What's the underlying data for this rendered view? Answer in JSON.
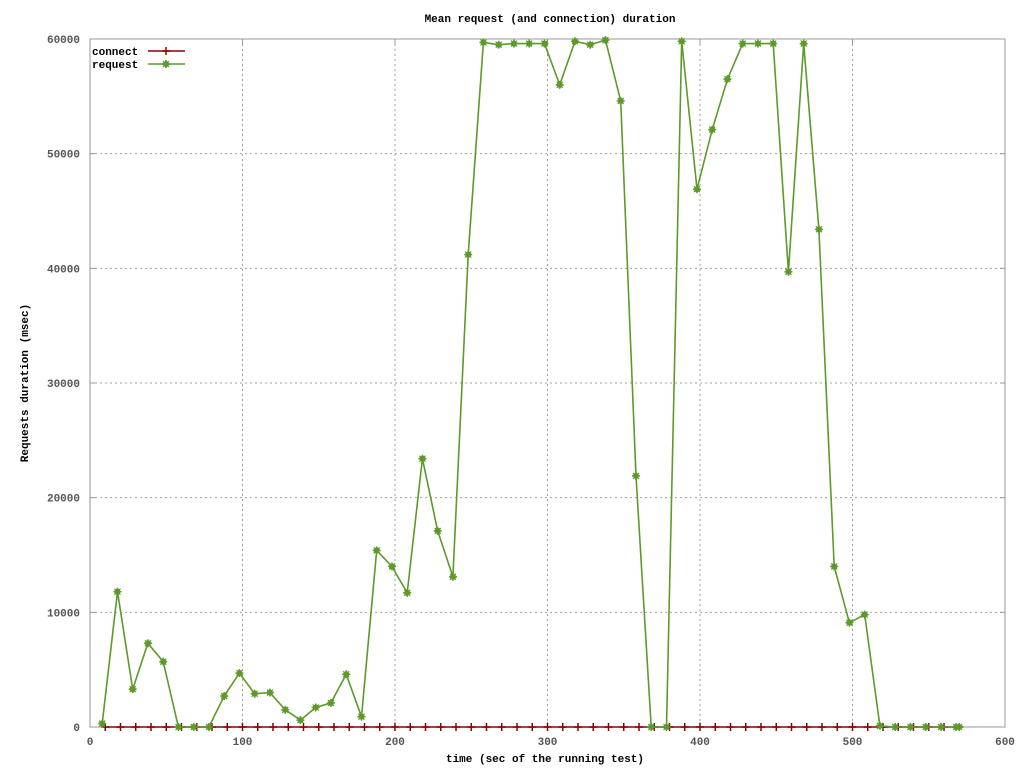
{
  "chart_data": {
    "type": "line",
    "title": "Mean request (and connection) duration",
    "xlabel": "time (sec of the running test)",
    "ylabel": "Requests duration (msec)",
    "xlim": [
      0,
      600
    ],
    "ylim": [
      0,
      60000
    ],
    "x_ticks": [
      0,
      100,
      200,
      300,
      400,
      500,
      600
    ],
    "y_ticks": [
      0,
      10000,
      20000,
      30000,
      40000,
      50000,
      60000
    ],
    "grid": true,
    "legend_position": "top-left",
    "series": [
      {
        "name": "connect",
        "color": "#8b0000",
        "marker": "plus",
        "x": [
          10,
          20,
          30,
          40,
          50,
          60,
          70,
          80,
          90,
          100,
          110,
          120,
          130,
          140,
          150,
          160,
          170,
          180,
          190,
          200,
          210,
          220,
          230,
          240,
          250,
          260,
          270,
          280,
          290,
          300,
          310,
          320,
          330,
          340,
          350,
          360,
          370,
          380,
          390,
          400,
          410,
          420,
          430,
          440,
          450,
          460,
          470,
          480,
          490,
          500,
          510,
          520,
          530,
          540,
          550,
          560,
          570
        ],
        "y": [
          0,
          0,
          0,
          0,
          0,
          0,
          0,
          0,
          0,
          0,
          0,
          0,
          0,
          0,
          0,
          0,
          0,
          0,
          0,
          0,
          0,
          0,
          0,
          0,
          0,
          0,
          0,
          0,
          0,
          0,
          0,
          0,
          0,
          0,
          0,
          0,
          0,
          0,
          0,
          0,
          0,
          0,
          0,
          0,
          0,
          0,
          0,
          0,
          0,
          0,
          0,
          0,
          0,
          0,
          0,
          0,
          0
        ]
      },
      {
        "name": "request",
        "color": "#5c9a2a",
        "marker": "star",
        "x": [
          8,
          18,
          28,
          38,
          48,
          58,
          68,
          78,
          88,
          98,
          108,
          118,
          128,
          138,
          148,
          158,
          168,
          178,
          188,
          198,
          208,
          218,
          228,
          238,
          248,
          258,
          268,
          278,
          288,
          298,
          308,
          318,
          328,
          338,
          348,
          358,
          368,
          378,
          388,
          398,
          408,
          418,
          428,
          438,
          448,
          458,
          468,
          478,
          488,
          498,
          508,
          518,
          528,
          538,
          548,
          558,
          568,
          570
        ],
        "y": [
          300,
          11800,
          3300,
          7300,
          5700,
          0,
          0,
          0,
          2700,
          4700,
          2900,
          3000,
          1500,
          600,
          1700,
          2100,
          4600,
          900,
          15400,
          14000,
          11700,
          23400,
          17100,
          13100,
          41200,
          59700,
          59500,
          59600,
          59600,
          59600,
          56000,
          59800,
          59500,
          59900,
          54600,
          21900,
          0,
          0,
          59800,
          46900,
          52100,
          56500,
          59600,
          59600,
          59600,
          39700,
          59600,
          43400,
          14000,
          9100,
          9800,
          100,
          0,
          0,
          0,
          0,
          0,
          0
        ]
      }
    ]
  }
}
